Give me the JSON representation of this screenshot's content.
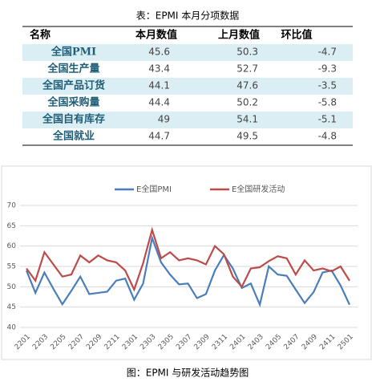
{
  "caption": "表：EPMI 本月分项数据",
  "table": {
    "header": [
      "名称",
      "本月数值",
      "上月数值",
      "环比值"
    ],
    "rows": [
      [
        "全国PMI",
        45.6,
        50.3,
        -4.7
      ],
      [
        "全国生产量",
        43.4,
        52.7,
        -9.3
      ],
      [
        "全国产品订货",
        44.1,
        47.6,
        -3.5
      ],
      [
        "全国采购量",
        44.4,
        50.2,
        -5.8
      ],
      [
        "全国自有库存",
        49,
        54.1,
        -5.1
      ],
      [
        "全国就业",
        44.7,
        49.5,
        -4.8
      ]
    ]
  },
  "chart_data": {
    "type": "line",
    "categories": [
      "2201",
      null,
      "2203",
      null,
      "2205",
      null,
      "2207",
      null,
      "2209",
      null,
      "2211",
      null,
      "2301",
      null,
      "2303",
      null,
      "2305",
      null,
      "2307",
      null,
      "2309",
      null,
      "2311",
      null,
      "2401",
      null,
      "2403",
      null,
      "2405",
      null,
      "2407",
      null,
      "2409",
      null,
      "2411",
      null,
      "2501"
    ],
    "series": [
      {
        "name": "E全国PMI",
        "color": "#4a7ebb",
        "values": [
          54,
          48.5,
          53.5,
          49.5,
          45.7,
          49,
          52.5,
          48.2,
          48.5,
          48.8,
          51.5,
          52,
          46.8,
          50.8,
          62,
          56,
          53,
          50.6,
          50.8,
          47.2,
          48.2,
          54,
          57.8,
          54.5,
          49.7,
          50.8,
          45.6,
          55,
          53,
          52.7,
          49.3,
          46,
          48.7,
          53.5,
          54,
          50.3,
          45.6
        ]
      },
      {
        "name": "E全国研发活动",
        "color": "#be4b48",
        "values": [
          54.5,
          51.5,
          58.5,
          55.5,
          52.5,
          53,
          57.7,
          56,
          57.7,
          56.5,
          56,
          54,
          49.3,
          55.8,
          64,
          57,
          58.5,
          56.5,
          57,
          56.5,
          55.5,
          60,
          58,
          52.5,
          50,
          54.5,
          54.8,
          56.3,
          57.5,
          57,
          53,
          56.5,
          54,
          54.5,
          53.8,
          55,
          51.5
        ]
      }
    ],
    "ylim": [
      40,
      70
    ],
    "yticks": [
      40,
      45,
      50,
      55,
      60,
      65,
      70
    ],
    "grid": true,
    "legend": "top"
  },
  "figure_caption": "图：EPMI 与研发活动趋势图"
}
